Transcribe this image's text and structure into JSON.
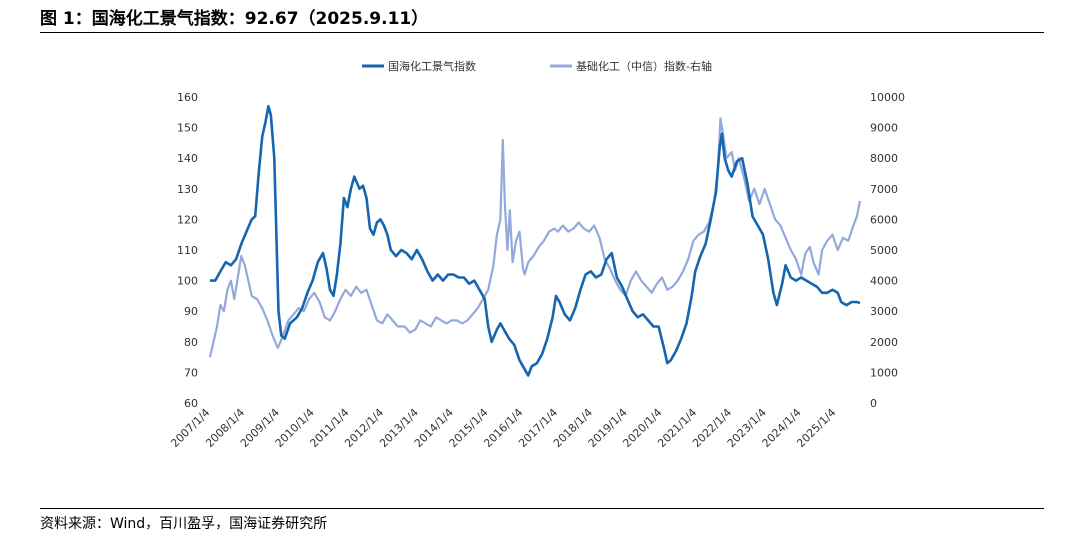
{
  "figure": {
    "title": "图 1：国海化工景气指数：92.67（2025.9.11）",
    "source": "资料来源：Wind，百川盈孚，国海证券研究所"
  },
  "colors": {
    "index": "#1565b0",
    "stock": "#92a9d9"
  },
  "chart_data": {
    "type": "line",
    "title": "",
    "xlabel": "",
    "ylabel": "",
    "x_tick_labels": [
      "2007/1/4",
      "2008/1/4",
      "2009/1/4",
      "2010/1/4",
      "2011/1/4",
      "2012/1/4",
      "2013/1/4",
      "2014/1/4",
      "2015/1/4",
      "2016/1/4",
      "2017/1/4",
      "2018/1/4",
      "2019/1/4",
      "2020/1/4",
      "2021/1/4",
      "2022/1/4",
      "2023/1/4",
      "2024/1/4",
      "2025/1/4"
    ],
    "ylim_left": [
      60,
      160
    ],
    "yticks_left": [
      60,
      70,
      80,
      90,
      100,
      110,
      120,
      130,
      140,
      150,
      160
    ],
    "ylim_right": [
      0,
      10000
    ],
    "yticks_right": [
      0,
      1000,
      2000,
      3000,
      4000,
      5000,
      6000,
      7000,
      8000,
      9000,
      10000
    ],
    "legend_position": "top-center",
    "series": [
      {
        "name": "国海化工景气指数",
        "axis": "left",
        "points": [
          [
            2007.0,
            100
          ],
          [
            2007.15,
            100
          ],
          [
            2007.3,
            103
          ],
          [
            2007.45,
            106
          ],
          [
            2007.6,
            105
          ],
          [
            2007.75,
            107
          ],
          [
            2007.9,
            112
          ],
          [
            2008.05,
            116
          ],
          [
            2008.2,
            120
          ],
          [
            2008.3,
            121
          ],
          [
            2008.4,
            135
          ],
          [
            2008.5,
            147
          ],
          [
            2008.6,
            152
          ],
          [
            2008.68,
            157
          ],
          [
            2008.75,
            154
          ],
          [
            2008.85,
            140
          ],
          [
            2008.92,
            110
          ],
          [
            2008.97,
            90
          ],
          [
            2009.05,
            82
          ],
          [
            2009.15,
            81
          ],
          [
            2009.3,
            86
          ],
          [
            2009.5,
            88
          ],
          [
            2009.65,
            91
          ],
          [
            2009.8,
            96
          ],
          [
            2009.95,
            100
          ],
          [
            2010.1,
            106
          ],
          [
            2010.25,
            109
          ],
          [
            2010.35,
            104
          ],
          [
            2010.45,
            97
          ],
          [
            2010.55,
            95
          ],
          [
            2010.65,
            102
          ],
          [
            2010.75,
            112
          ],
          [
            2010.85,
            127
          ],
          [
            2010.95,
            124
          ],
          [
            2011.05,
            130
          ],
          [
            2011.15,
            134
          ],
          [
            2011.3,
            130
          ],
          [
            2011.4,
            131
          ],
          [
            2011.5,
            127
          ],
          [
            2011.6,
            117
          ],
          [
            2011.7,
            115
          ],
          [
            2011.8,
            119
          ],
          [
            2011.9,
            120
          ],
          [
            2012.0,
            118
          ],
          [
            2012.1,
            115
          ],
          [
            2012.2,
            110
          ],
          [
            2012.35,
            108
          ],
          [
            2012.5,
            110
          ],
          [
            2012.65,
            109
          ],
          [
            2012.8,
            107
          ],
          [
            2012.95,
            110
          ],
          [
            2013.1,
            107
          ],
          [
            2013.25,
            103
          ],
          [
            2013.4,
            100
          ],
          [
            2013.55,
            102
          ],
          [
            2013.7,
            100
          ],
          [
            2013.85,
            102
          ],
          [
            2014.0,
            102
          ],
          [
            2014.15,
            101
          ],
          [
            2014.3,
            101
          ],
          [
            2014.45,
            99
          ],
          [
            2014.6,
            100
          ],
          [
            2014.75,
            97
          ],
          [
            2014.9,
            94
          ],
          [
            2015.0,
            85
          ],
          [
            2015.1,
            80
          ],
          [
            2015.25,
            84
          ],
          [
            2015.35,
            86
          ],
          [
            2015.45,
            84
          ],
          [
            2015.6,
            81
          ],
          [
            2015.75,
            79
          ],
          [
            2015.9,
            74
          ],
          [
            2016.05,
            71
          ],
          [
            2016.15,
            69
          ],
          [
            2016.25,
            72
          ],
          [
            2016.4,
            73
          ],
          [
            2016.55,
            76
          ],
          [
            2016.7,
            81
          ],
          [
            2016.85,
            88
          ],
          [
            2016.95,
            95
          ],
          [
            2017.05,
            93
          ],
          [
            2017.2,
            89
          ],
          [
            2017.35,
            87
          ],
          [
            2017.5,
            91
          ],
          [
            2017.65,
            97
          ],
          [
            2017.8,
            102
          ],
          [
            2017.95,
            103
          ],
          [
            2018.1,
            101
          ],
          [
            2018.25,
            102
          ],
          [
            2018.4,
            107
          ],
          [
            2018.55,
            109
          ],
          [
            2018.7,
            101
          ],
          [
            2018.85,
            98
          ],
          [
            2019.0,
            94
          ],
          [
            2019.15,
            90
          ],
          [
            2019.3,
            88
          ],
          [
            2019.45,
            89
          ],
          [
            2019.6,
            87
          ],
          [
            2019.75,
            85
          ],
          [
            2019.9,
            85
          ],
          [
            2020.05,
            78
          ],
          [
            2020.15,
            73
          ],
          [
            2020.25,
            74
          ],
          [
            2020.4,
            77
          ],
          [
            2020.55,
            81
          ],
          [
            2020.7,
            86
          ],
          [
            2020.85,
            95
          ],
          [
            2020.95,
            103
          ],
          [
            2021.1,
            108
          ],
          [
            2021.25,
            112
          ],
          [
            2021.4,
            120
          ],
          [
            2021.55,
            129
          ],
          [
            2021.65,
            143
          ],
          [
            2021.72,
            148
          ],
          [
            2021.8,
            140
          ],
          [
            2021.9,
            136
          ],
          [
            2022.0,
            134
          ],
          [
            2022.15,
            139
          ],
          [
            2022.3,
            140
          ],
          [
            2022.45,
            132
          ],
          [
            2022.6,
            121
          ],
          [
            2022.75,
            118
          ],
          [
            2022.9,
            115
          ],
          [
            2023.05,
            107
          ],
          [
            2023.2,
            96
          ],
          [
            2023.3,
            92
          ],
          [
            2023.45,
            99
          ],
          [
            2023.55,
            105
          ],
          [
            2023.7,
            101
          ],
          [
            2023.85,
            100
          ],
          [
            2024.0,
            101
          ],
          [
            2024.15,
            100
          ],
          [
            2024.3,
            99
          ],
          [
            2024.45,
            98
          ],
          [
            2024.6,
            96
          ],
          [
            2024.75,
            96
          ],
          [
            2024.9,
            97
          ],
          [
            2025.05,
            96
          ],
          [
            2025.15,
            93
          ],
          [
            2025.3,
            92
          ],
          [
            2025.45,
            93
          ],
          [
            2025.6,
            93
          ],
          [
            2025.69,
            92.67
          ]
        ]
      },
      {
        "name": "基础化工（中信）指数-右轴",
        "axis": "right",
        "points": [
          [
            2007.0,
            1500
          ],
          [
            2007.1,
            2000
          ],
          [
            2007.2,
            2500
          ],
          [
            2007.3,
            3200
          ],
          [
            2007.4,
            3000
          ],
          [
            2007.5,
            3700
          ],
          [
            2007.6,
            4000
          ],
          [
            2007.7,
            3400
          ],
          [
            2007.8,
            4100
          ],
          [
            2007.9,
            4800
          ],
          [
            2008.0,
            4500
          ],
          [
            2008.1,
            4000
          ],
          [
            2008.2,
            3500
          ],
          [
            2008.35,
            3400
          ],
          [
            2008.5,
            3100
          ],
          [
            2008.65,
            2700
          ],
          [
            2008.8,
            2200
          ],
          [
            2008.95,
            1800
          ],
          [
            2009.1,
            2200
          ],
          [
            2009.25,
            2700
          ],
          [
            2009.4,
            2900
          ],
          [
            2009.55,
            3100
          ],
          [
            2009.7,
            3000
          ],
          [
            2009.85,
            3400
          ],
          [
            2010.0,
            3600
          ],
          [
            2010.15,
            3300
          ],
          [
            2010.3,
            2800
          ],
          [
            2010.45,
            2700
          ],
          [
            2010.6,
            3000
          ],
          [
            2010.75,
            3400
          ],
          [
            2010.9,
            3700
          ],
          [
            2011.05,
            3500
          ],
          [
            2011.2,
            3800
          ],
          [
            2011.35,
            3600
          ],
          [
            2011.5,
            3700
          ],
          [
            2011.65,
            3200
          ],
          [
            2011.8,
            2700
          ],
          [
            2011.95,
            2600
          ],
          [
            2012.1,
            2900
          ],
          [
            2012.25,
            2700
          ],
          [
            2012.4,
            2500
          ],
          [
            2012.6,
            2500
          ],
          [
            2012.75,
            2300
          ],
          [
            2012.9,
            2400
          ],
          [
            2013.05,
            2700
          ],
          [
            2013.2,
            2600
          ],
          [
            2013.35,
            2500
          ],
          [
            2013.5,
            2800
          ],
          [
            2013.65,
            2700
          ],
          [
            2013.8,
            2600
          ],
          [
            2013.95,
            2700
          ],
          [
            2014.1,
            2700
          ],
          [
            2014.25,
            2600
          ],
          [
            2014.4,
            2700
          ],
          [
            2014.55,
            2900
          ],
          [
            2014.7,
            3100
          ],
          [
            2014.85,
            3400
          ],
          [
            2015.0,
            3700
          ],
          [
            2015.15,
            4500
          ],
          [
            2015.25,
            5500
          ],
          [
            2015.35,
            6000
          ],
          [
            2015.42,
            8600
          ],
          [
            2015.48,
            6500
          ],
          [
            2015.55,
            5000
          ],
          [
            2015.62,
            6300
          ],
          [
            2015.7,
            4600
          ],
          [
            2015.8,
            5300
          ],
          [
            2015.9,
            5600
          ],
          [
            2016.0,
            4400
          ],
          [
            2016.05,
            4200
          ],
          [
            2016.15,
            4600
          ],
          [
            2016.3,
            4800
          ],
          [
            2016.45,
            5100
          ],
          [
            2016.6,
            5300
          ],
          [
            2016.75,
            5600
          ],
          [
            2016.9,
            5700
          ],
          [
            2017.0,
            5600
          ],
          [
            2017.15,
            5800
          ],
          [
            2017.3,
            5600
          ],
          [
            2017.45,
            5700
          ],
          [
            2017.6,
            5900
          ],
          [
            2017.75,
            5700
          ],
          [
            2017.9,
            5600
          ],
          [
            2018.05,
            5800
          ],
          [
            2018.2,
            5400
          ],
          [
            2018.35,
            4700
          ],
          [
            2018.5,
            4400
          ],
          [
            2018.65,
            4000
          ],
          [
            2018.8,
            3700
          ],
          [
            2018.95,
            3500
          ],
          [
            2019.1,
            4000
          ],
          [
            2019.25,
            4300
          ],
          [
            2019.4,
            4000
          ],
          [
            2019.55,
            3800
          ],
          [
            2019.7,
            3600
          ],
          [
            2019.85,
            3900
          ],
          [
            2020.0,
            4100
          ],
          [
            2020.15,
            3700
          ],
          [
            2020.3,
            3800
          ],
          [
            2020.45,
            4000
          ],
          [
            2020.6,
            4300
          ],
          [
            2020.75,
            4700
          ],
          [
            2020.9,
            5300
          ],
          [
            2021.05,
            5500
          ],
          [
            2021.2,
            5600
          ],
          [
            2021.35,
            5900
          ],
          [
            2021.5,
            6600
          ],
          [
            2021.6,
            7600
          ],
          [
            2021.68,
            9300
          ],
          [
            2021.75,
            8800
          ],
          [
            2021.85,
            8000
          ],
          [
            2022.0,
            8200
          ],
          [
            2022.1,
            7600
          ],
          [
            2022.2,
            8000
          ],
          [
            2022.35,
            7400
          ],
          [
            2022.5,
            6600
          ],
          [
            2022.65,
            7000
          ],
          [
            2022.8,
            6500
          ],
          [
            2022.95,
            7000
          ],
          [
            2023.1,
            6500
          ],
          [
            2023.25,
            6000
          ],
          [
            2023.4,
            5800
          ],
          [
            2023.55,
            5400
          ],
          [
            2023.7,
            5000
          ],
          [
            2023.85,
            4700
          ],
          [
            2024.0,
            4200
          ],
          [
            2024.12,
            4900
          ],
          [
            2024.25,
            5100
          ],
          [
            2024.35,
            4600
          ],
          [
            2024.5,
            4200
          ],
          [
            2024.6,
            5000
          ],
          [
            2024.75,
            5300
          ],
          [
            2024.9,
            5500
          ],
          [
            2025.05,
            5000
          ],
          [
            2025.2,
            5400
          ],
          [
            2025.35,
            5300
          ],
          [
            2025.5,
            5800
          ],
          [
            2025.6,
            6100
          ],
          [
            2025.69,
            6600
          ]
        ]
      }
    ]
  }
}
